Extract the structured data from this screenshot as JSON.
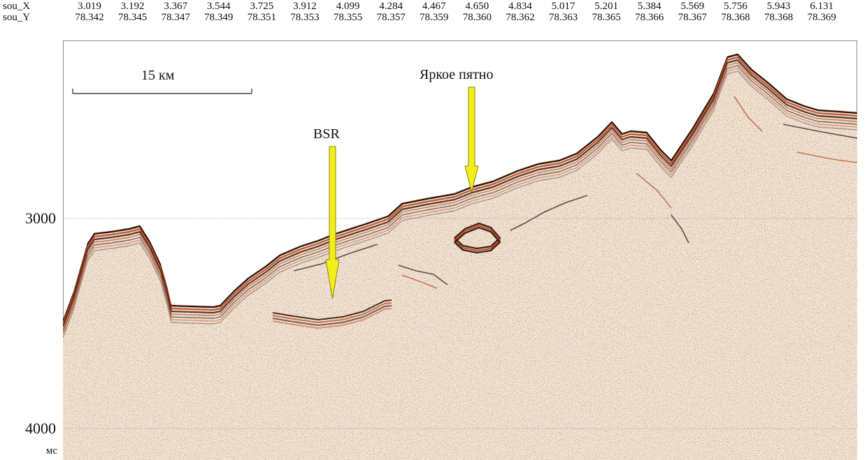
{
  "header": {
    "x_row_label": "sou_X",
    "y_row_label": "sou_Y",
    "x_values": [
      "3.019",
      "3.192",
      "3.367",
      "3.544",
      "3.725",
      "3.912",
      "4.099",
      "4.284",
      "4.467",
      "4.650",
      "4.834",
      "5.017",
      "5.201",
      "5.384",
      "5.569",
      "5.756",
      "5.943",
      "6.131"
    ],
    "y_values": [
      "78.342",
      "78.345",
      "78.347",
      "78.349",
      "78.351",
      "78.353",
      "78.355",
      "78.357",
      "78.359",
      "78.360",
      "78.362",
      "78.363",
      "78.365",
      "78.366",
      "78.367",
      "78.368",
      "78.368",
      "78.369"
    ]
  },
  "axis": {
    "tick_3000": "3000",
    "tick_4000": "4000",
    "unit": "мс"
  },
  "scale_bar": {
    "label": "15 км"
  },
  "annotations": {
    "bsr": "BSR",
    "bright_spot": "Яркое пятно"
  },
  "colors": {
    "arrow_fill": "#f2ee1c",
    "arrow_stroke": "#8a8700",
    "reflector_dark": "#2a0f05",
    "reflector_red": "#c0441c",
    "noise_base": "#f1e4d6",
    "noise_dark": "#6b3415"
  }
}
